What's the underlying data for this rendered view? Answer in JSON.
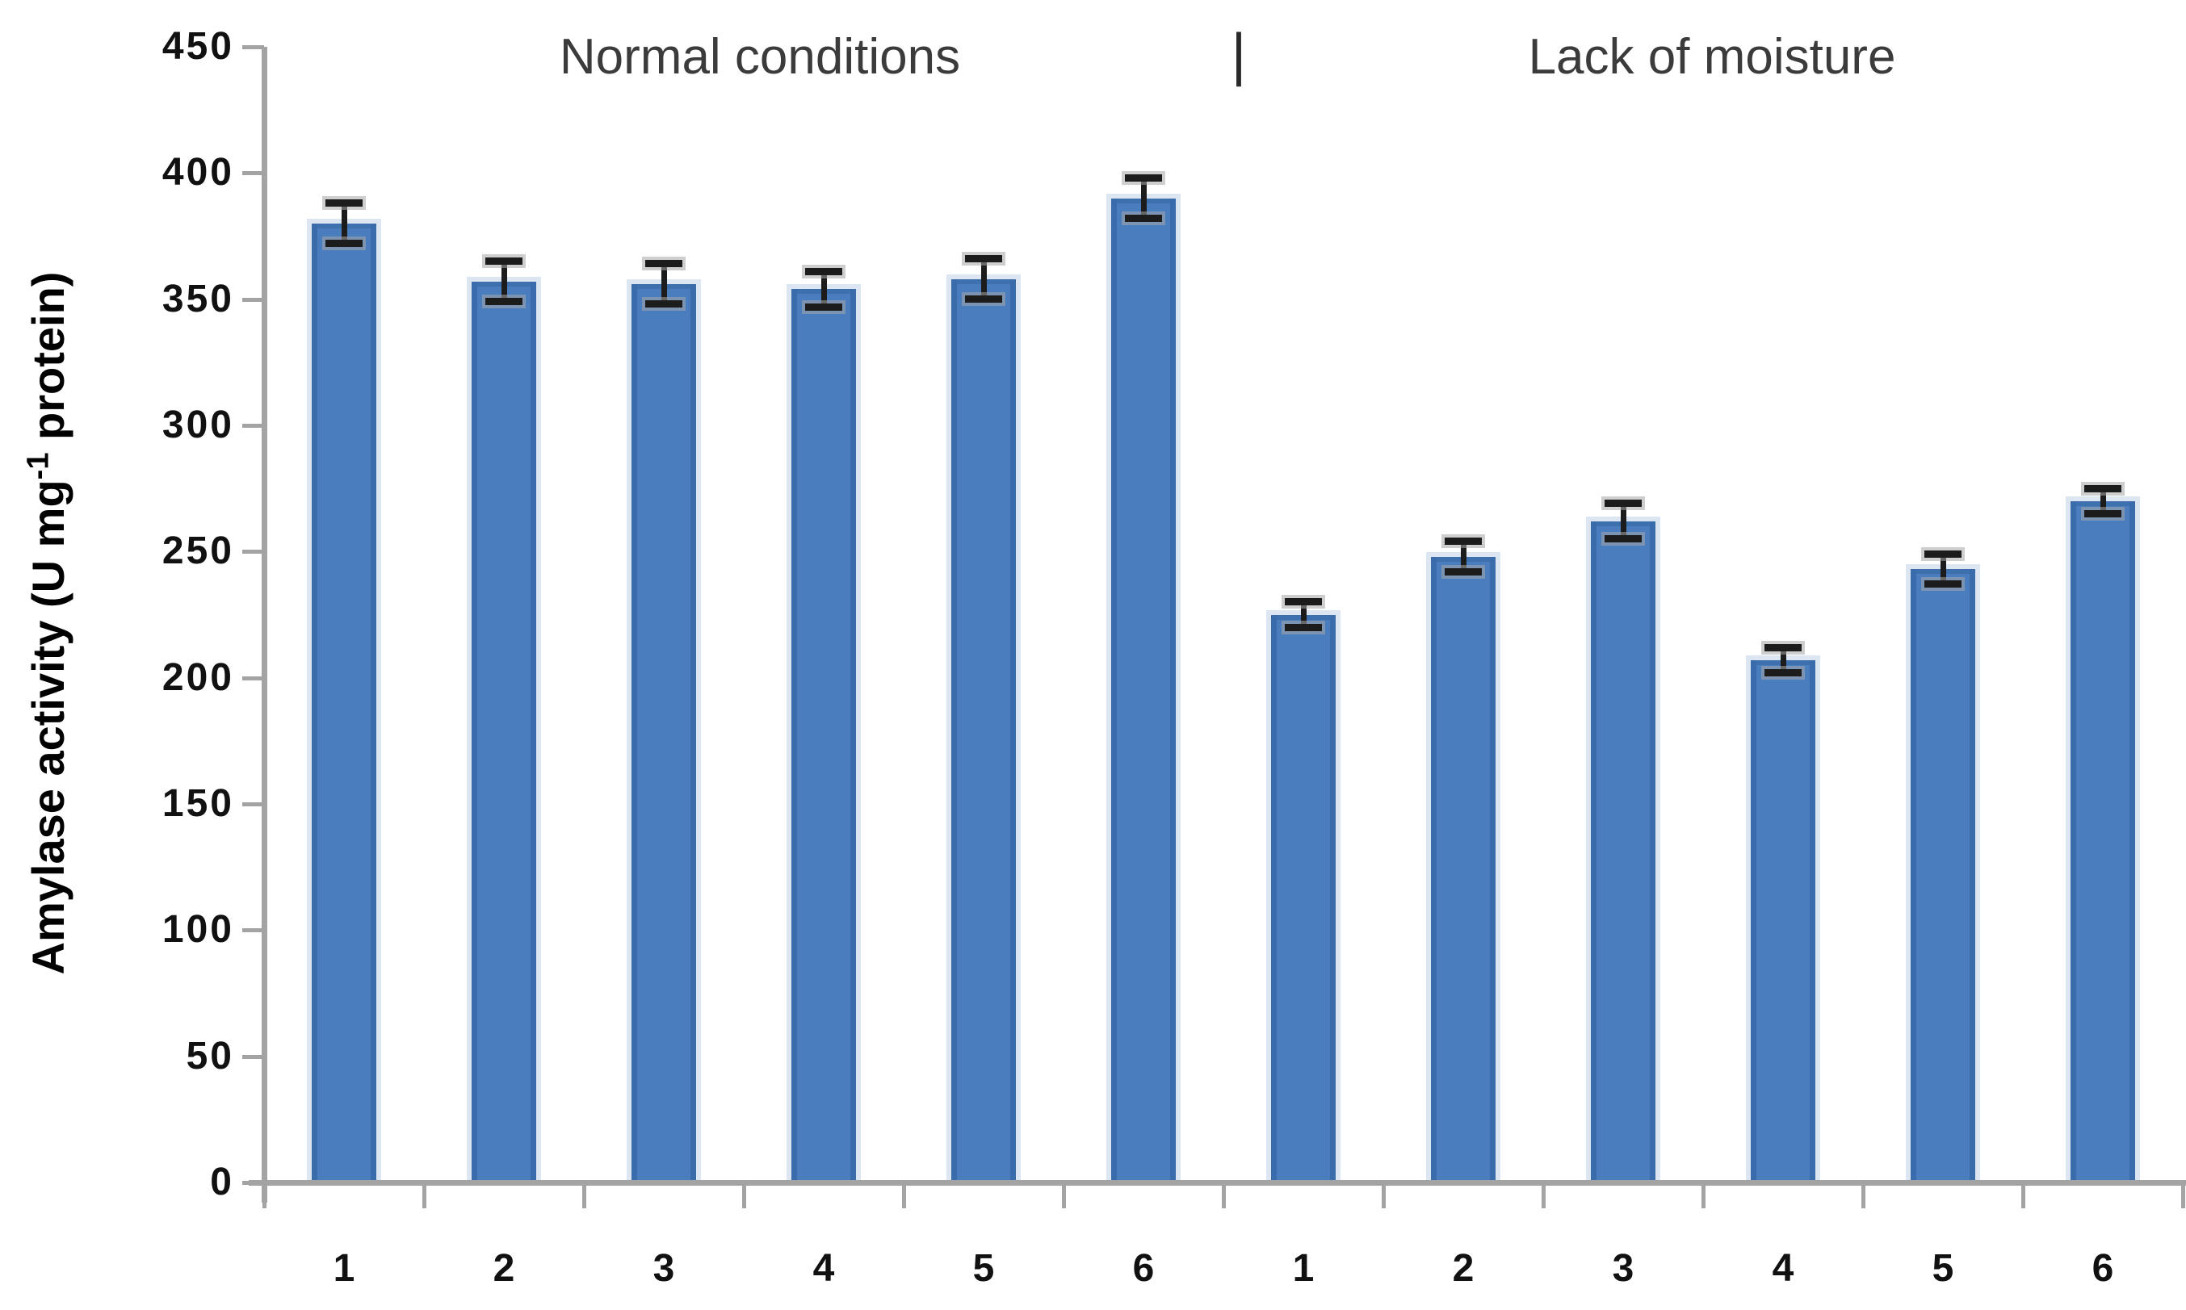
{
  "chart_data": {
    "type": "bar",
    "title": "",
    "xlabel": "",
    "ylabel": "Amylase activity (U mg-1 protein)",
    "ylabel_parts": {
      "pre": "Amylase activity (U mg",
      "sup": "-1",
      "post": " protein)"
    },
    "ylim": [
      0,
      450
    ],
    "ytick_step": 50,
    "yticks": [
      "450",
      "400",
      "350",
      "300",
      "250",
      "200",
      "150",
      "100",
      "50",
      "0"
    ],
    "grid": false,
    "legend": false,
    "separator": "|",
    "groups": [
      {
        "label": "Normal conditions",
        "categories": [
          "1",
          "2",
          "3",
          "4",
          "5",
          "6"
        ],
        "values": [
          380,
          357,
          356,
          354,
          358,
          390
        ],
        "errors": [
          8,
          8,
          8,
          7,
          8,
          8
        ]
      },
      {
        "label": "Lack of moisture",
        "categories": [
          "1",
          "2",
          "3",
          "4",
          "5",
          "6"
        ],
        "values": [
          225,
          248,
          262,
          207,
          243,
          270
        ],
        "errors": [
          5,
          6,
          7,
          5,
          6,
          5
        ]
      }
    ],
    "colors": {
      "bar_fill": "#4a7dbe",
      "bar_edge_dark": "#3a6cab",
      "bar_border_light": "#dce6f3",
      "axis": "#a3a3a3",
      "error_bar": "#1c1c1c",
      "header_text": "#3b3b3b",
      "tick_text": "#111111"
    }
  }
}
